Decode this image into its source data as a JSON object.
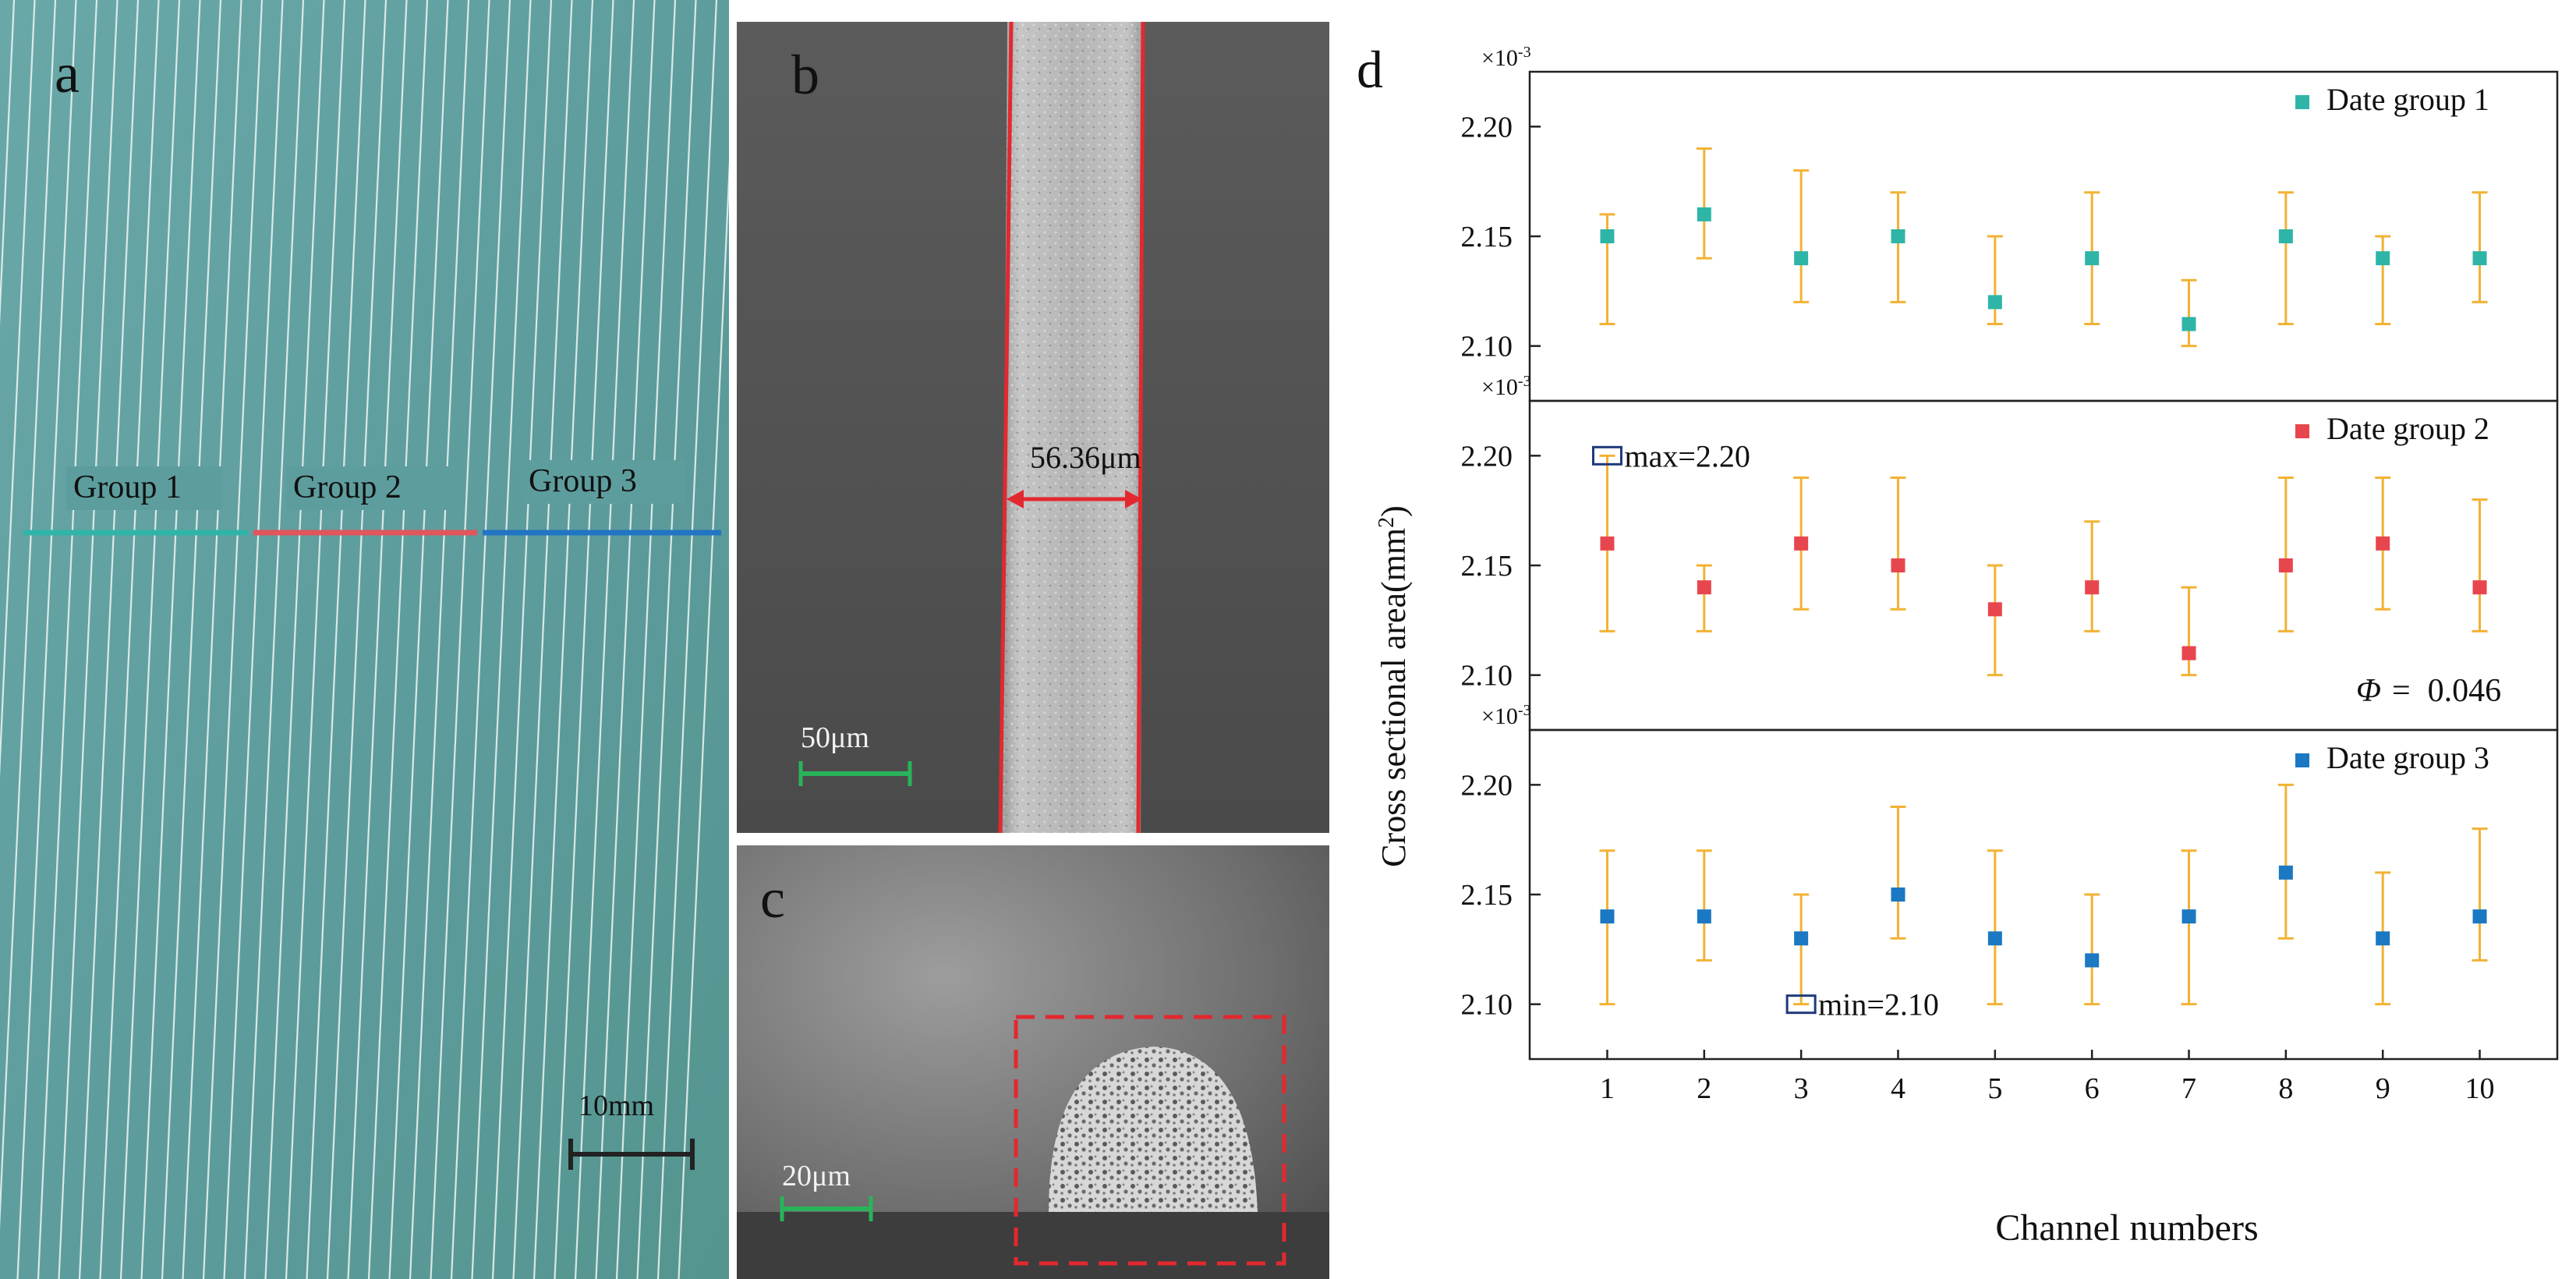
{
  "panel_a": {
    "letter": "a",
    "group_labels": [
      "Group 1",
      "Group 2",
      "Group 3"
    ],
    "group_colors": [
      "#2fb5a8",
      "#e0565b",
      "#2274c4"
    ],
    "scale_label": "10mm",
    "background": "#5e9d9e"
  },
  "panel_b": {
    "letter": "b",
    "width_label": "56.36μm",
    "scale_label": "50μm"
  },
  "panel_c": {
    "letter": "c",
    "scale_label": "20μm"
  },
  "chart_data": {
    "type": "scatter",
    "panel_letter": "d",
    "xlabel": "Channel numbers",
    "ylabel": "Cross sectional area(mm²)",
    "ylabel_main": "Cross sectional area(mm",
    "ylabel_sup": "2",
    "ylabel_tail": ")",
    "y_multiplier": "×10",
    "y_multiplier_exp": "-3",
    "x": [
      1,
      2,
      3,
      4,
      5,
      6,
      7,
      8,
      9,
      10
    ],
    "x_tick_labels": [
      "1",
      "2",
      "3",
      "4",
      "5",
      "6",
      "7",
      "8",
      "9",
      "10"
    ],
    "xlim": [
      0.2,
      10.8
    ],
    "ylim": [
      2.075,
      2.225
    ],
    "y_ticks": [
      2.1,
      2.15,
      2.2
    ],
    "y_tick_labels": [
      "2.10",
      "2.15",
      "2.20"
    ],
    "errorbar_color": "#f2b234",
    "series": [
      {
        "name": "Date group 1",
        "color": "#2fb5a8",
        "values": [
          2.15,
          2.16,
          2.14,
          2.15,
          2.12,
          2.14,
          2.11,
          2.15,
          2.14,
          2.14
        ],
        "err_low": [
          2.11,
          2.14,
          2.12,
          2.12,
          2.11,
          2.11,
          2.1,
          2.11,
          2.11,
          2.12
        ],
        "err_high": [
          2.16,
          2.19,
          2.18,
          2.17,
          2.15,
          2.17,
          2.13,
          2.17,
          2.15,
          2.17
        ]
      },
      {
        "name": "Date group 2",
        "color": "#e8464e",
        "values": [
          2.16,
          2.14,
          2.16,
          2.15,
          2.13,
          2.14,
          2.11,
          2.15,
          2.16,
          2.14
        ],
        "err_low": [
          2.12,
          2.12,
          2.13,
          2.13,
          2.1,
          2.12,
          2.1,
          2.12,
          2.13,
          2.12
        ],
        "err_high": [
          2.2,
          2.15,
          2.19,
          2.19,
          2.15,
          2.17,
          2.14,
          2.19,
          2.19,
          2.18
        ]
      },
      {
        "name": "Date group 3",
        "color": "#1b78c2",
        "values": [
          2.14,
          2.14,
          2.13,
          2.15,
          2.13,
          2.12,
          2.14,
          2.16,
          2.13,
          2.14
        ],
        "err_low": [
          2.1,
          2.12,
          2.1,
          2.13,
          2.1,
          2.1,
          2.1,
          2.13,
          2.1,
          2.12
        ],
        "err_high": [
          2.17,
          2.17,
          2.15,
          2.19,
          2.17,
          2.15,
          2.17,
          2.2,
          2.16,
          2.18
        ]
      }
    ],
    "annotations": [
      {
        "series": 1,
        "text": "max=2.20",
        "x": 1,
        "y": 2.2
      },
      {
        "series": 1,
        "text": "Φ = 0.046",
        "symbol": "Φ",
        "equals": "=",
        "value": "0.046"
      },
      {
        "series": 2,
        "text": "min=2.10",
        "x": 3,
        "y": 2.1
      }
    ]
  }
}
